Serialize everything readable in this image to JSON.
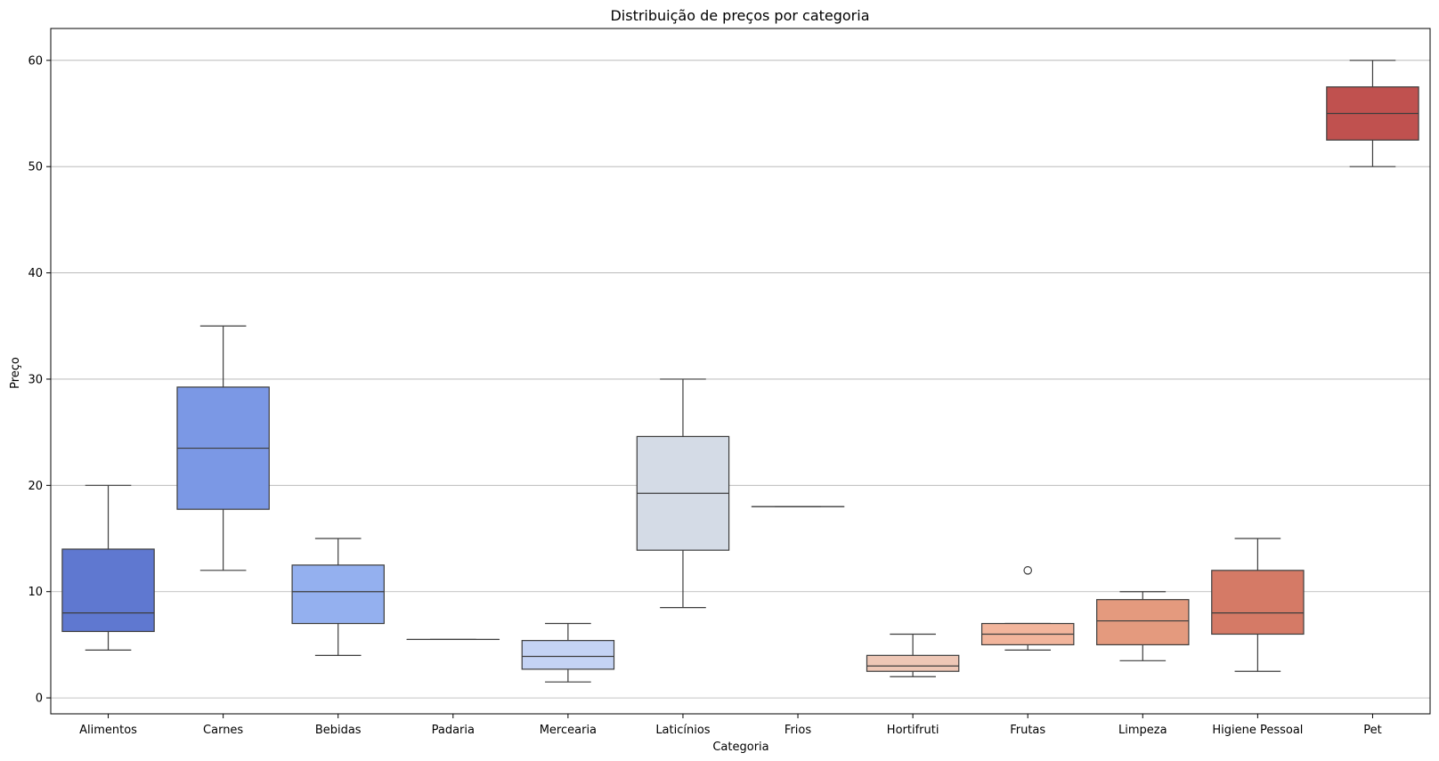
{
  "chart_data": {
    "type": "boxplot",
    "title": "Distribuição de preços por categoria",
    "xlabel": "Categoria",
    "ylabel": "Preço",
    "ylim": [
      -1.5,
      63
    ],
    "yticks": [
      0,
      10,
      20,
      30,
      40,
      50,
      60
    ],
    "grid": "y",
    "categories": [
      "Alimentos",
      "Carnes",
      "Bebidas",
      "Padaria",
      "Mercearia",
      "Laticínios",
      "Frios",
      "Hortifruti",
      "Frutas",
      "Limpeza",
      "Higiene Pessoal",
      "Pet"
    ],
    "boxes": [
      {
        "category": "Alimentos",
        "whislo": 4.5,
        "q1": 6.25,
        "med": 8,
        "q3": 14,
        "whishi": 20,
        "fliers": [],
        "color": "#5f78d0"
      },
      {
        "category": "Carnes",
        "whislo": 12,
        "q1": 17.75,
        "med": 23.5,
        "q3": 29.25,
        "whishi": 35,
        "fliers": [],
        "color": "#7b98e5"
      },
      {
        "category": "Bebidas",
        "whislo": 4,
        "q1": 7,
        "med": 10,
        "q3": 12.5,
        "whishi": 15,
        "fliers": [],
        "color": "#94b0ef"
      },
      {
        "category": "Padaria",
        "whislo": 5.5,
        "q1": 5.5,
        "med": 5.5,
        "q3": 5.5,
        "whishi": 5.5,
        "fliers": [],
        "color": "#aec4f5"
      },
      {
        "category": "Mercearia",
        "whislo": 1.5,
        "q1": 2.7,
        "med": 3.9,
        "q3": 5.4,
        "whishi": 7,
        "fliers": [],
        "color": "#c4d3f4"
      },
      {
        "category": "Laticínios",
        "whislo": 8.5,
        "q1": 13.9,
        "med": 19.25,
        "q3": 24.6,
        "whishi": 30,
        "fliers": [],
        "color": "#d4dbe6"
      },
      {
        "category": "Frios",
        "whislo": 18,
        "q1": 18,
        "med": 18,
        "q3": 18,
        "whishi": 18,
        "fliers": [],
        "color": "#e5d9d2"
      },
      {
        "category": "Hortifruti",
        "whislo": 2,
        "q1": 2.5,
        "med": 3,
        "q3": 4,
        "whishi": 6,
        "fliers": [],
        "color": "#eec7b6"
      },
      {
        "category": "Frutas",
        "whislo": 4.5,
        "q1": 5,
        "med": 6,
        "q3": 7,
        "whishi": 7,
        "fliers": [
          12
        ],
        "color": "#f2b59c"
      },
      {
        "category": "Limpeza",
        "whislo": 3.5,
        "q1": 5,
        "med": 7.25,
        "q3": 9.25,
        "whishi": 10,
        "fliers": [],
        "color": "#e49a7e"
      },
      {
        "category": "Higiene Pessoal",
        "whislo": 2.5,
        "q1": 6,
        "med": 8,
        "q3": 12,
        "whishi": 15,
        "fliers": [],
        "color": "#d57a66"
      },
      {
        "category": "Pet",
        "whislo": 50,
        "q1": 52.5,
        "med": 55,
        "q3": 57.5,
        "whishi": 60,
        "fliers": [],
        "color": "#c0514f"
      }
    ]
  }
}
